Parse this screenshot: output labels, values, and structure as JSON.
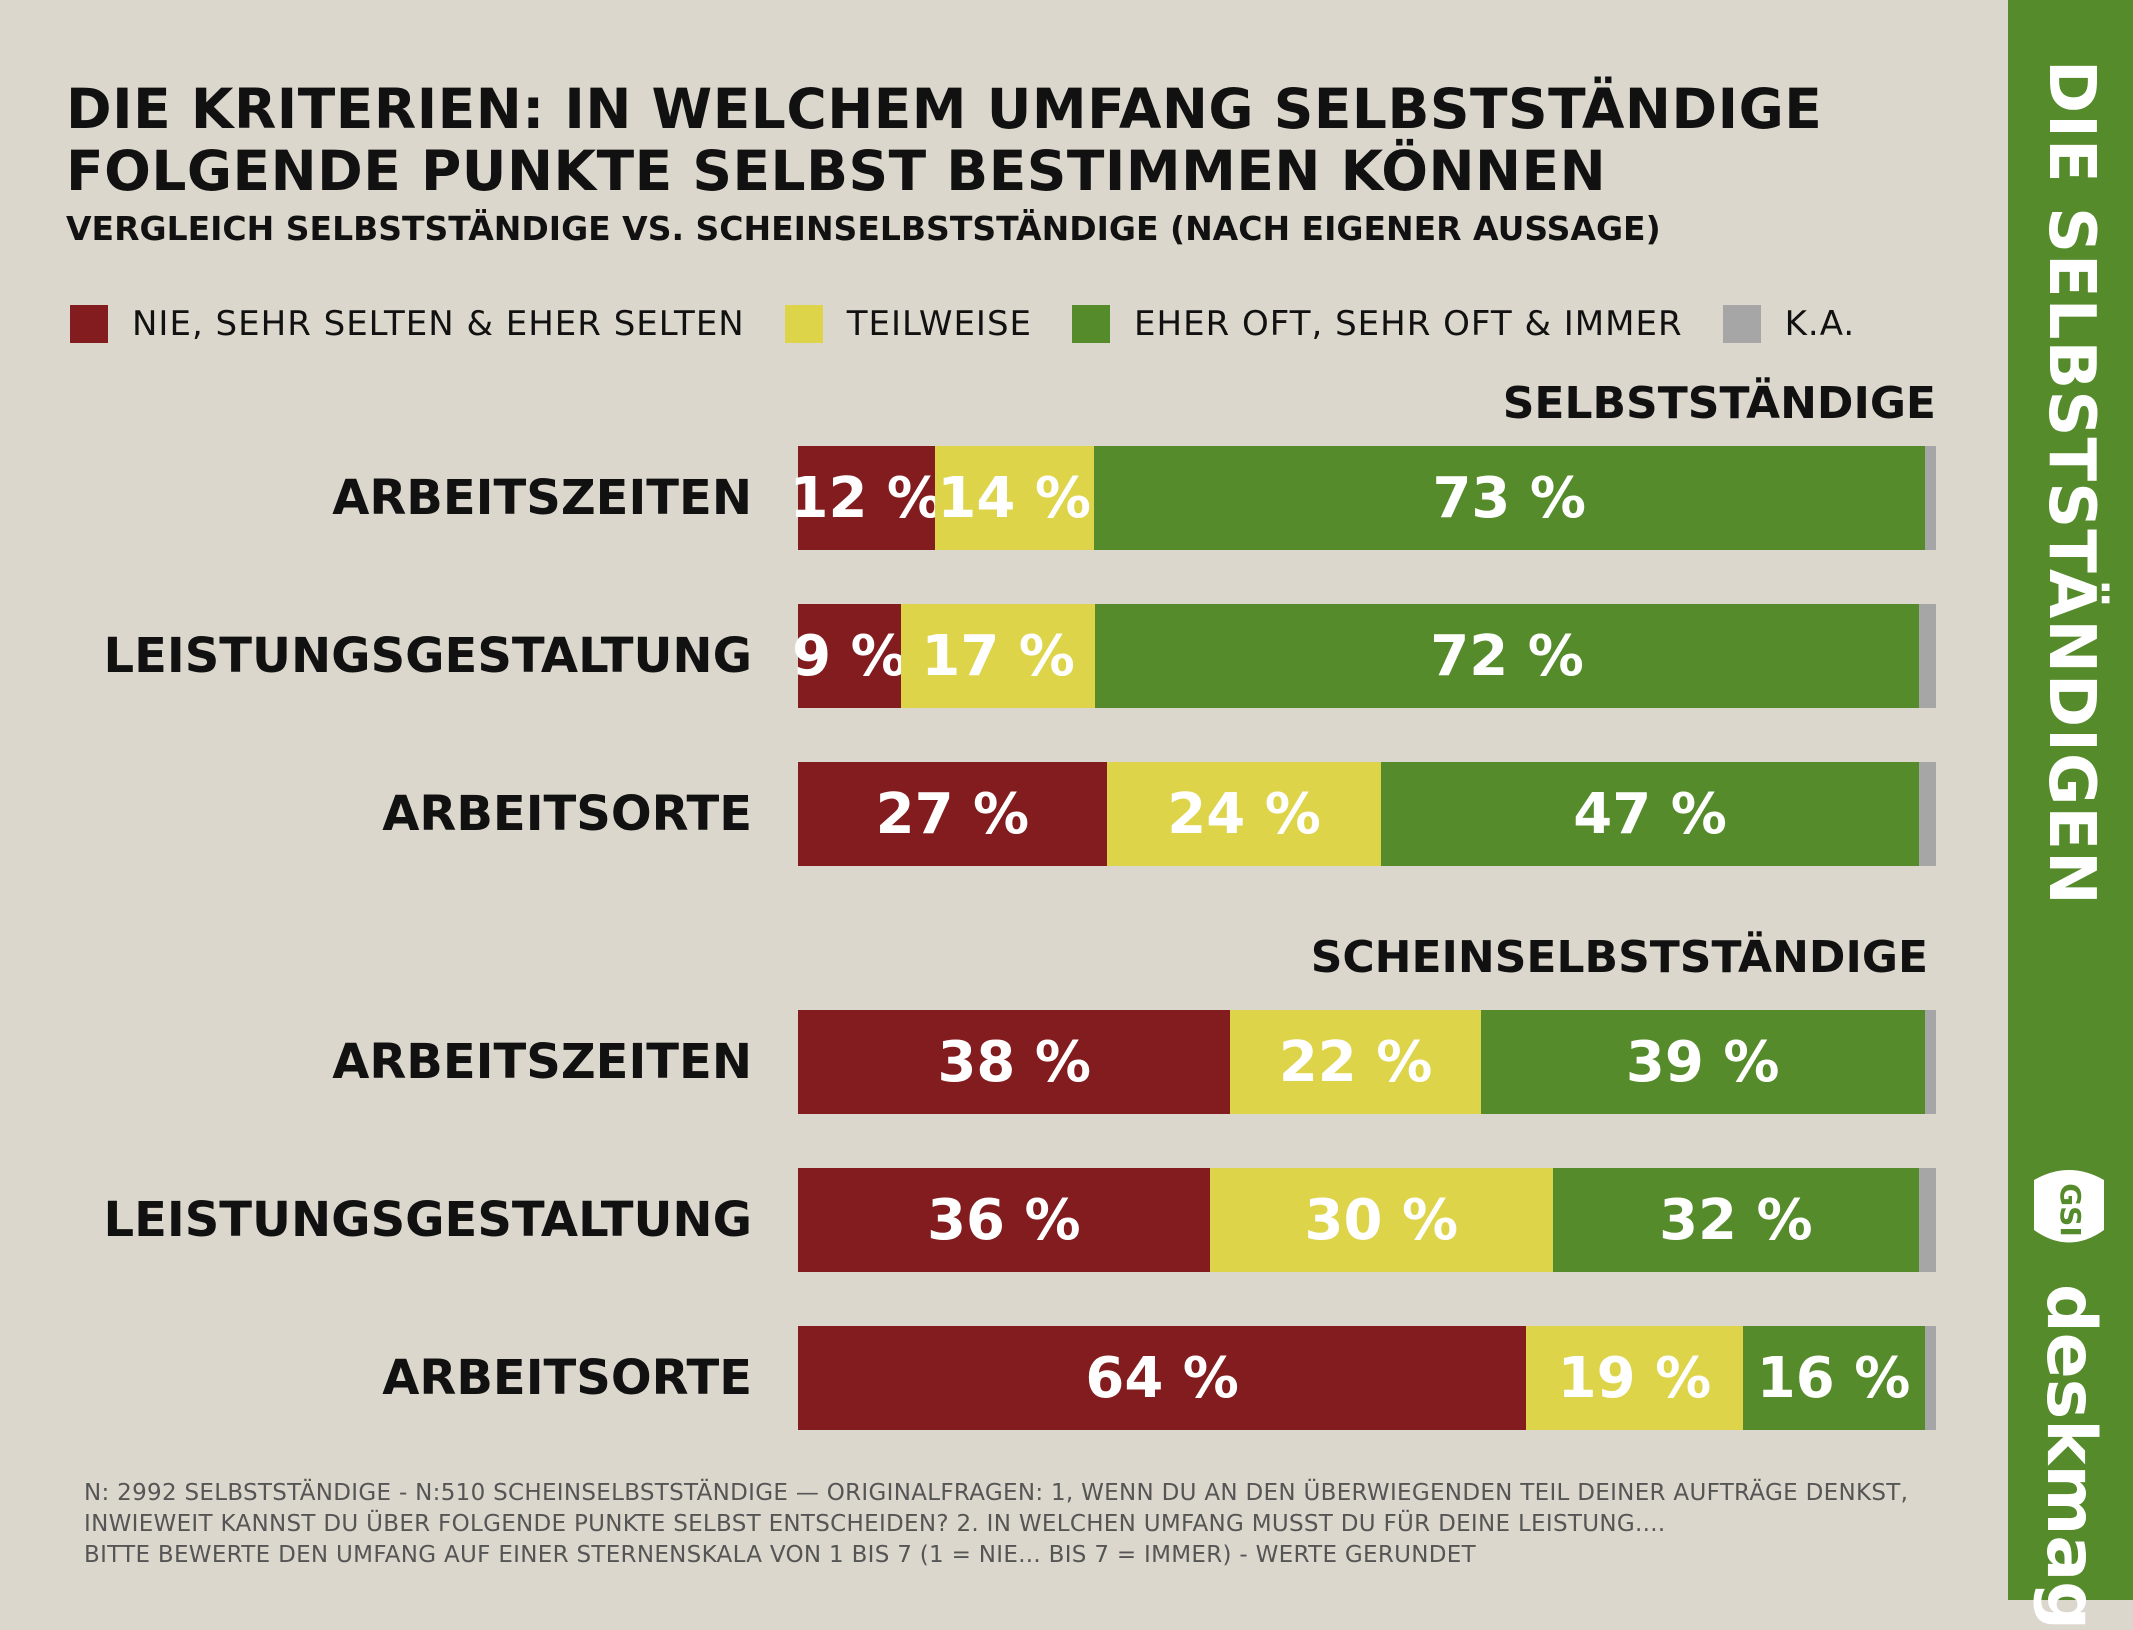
{
  "title_line1": "DIE KRITERIEN: IN WELCHEM UMFANG SELBSTSTÄNDIGE",
  "title_line2": "FOLGENDE PUNKTE SELBST BESTIMMEN KÖNNEN",
  "subtitle": "VERGLEICH SELBSTSTÄNDIGE VS. SCHEINSELBSTSTÄNDIGE (NACH EIGENER AUSSAGE)",
  "sidebar_title": "DIE SELBSTSTÄNDIGEN",
  "brand": "deskmag",
  "logo_text": "GSI",
  "colors": {
    "red": "#831c1f",
    "yellow": "#ddd44a",
    "green": "#568b2b",
    "grey": "#a7a6a6"
  },
  "footnote": [
    "N: 2992 SELBSTSTÄNDIGE - N:510 SCHEINSELBSTSTÄNDIGE — ORIGINALFRAGEN: 1, WENN DU AN DEN ÜBERWIEGENDEN TEIL DEINER AUFTRÄGE DENKST,",
    "INWIEWEIT KANNST DU ÜBER FOLGENDE PUNKTE SELBST ENTSCHEIDEN? 2. IN WELCHEN UMFANG MUSST DU FÜR DEINE LEISTUNG....",
    "BITTE BEWERTE DEN UMFANG AUF EINER STERNENSKALA VON 1 BIS 7 (1 = NIE... BIS 7 = IMMER) - WERTE GERUNDET"
  ],
  "chart_data": {
    "type": "bar",
    "orientation": "horizontal",
    "stacked": true,
    "legend_placement": "top-left",
    "series": [
      {
        "name": "NIE, SEHR SELTEN & EHER SELTEN",
        "color": "#831c1f"
      },
      {
        "name": "TEILWEISE",
        "color": "#ddd44a"
      },
      {
        "name": "EHER OFT, SEHR OFT & IMMER",
        "color": "#568b2b"
      },
      {
        "name": "K.A.",
        "color": "#a7a6a6"
      }
    ],
    "groups": [
      {
        "name": "SELBSTSTÄNDIGE",
        "rows": [
          {
            "category": "ARBEITSZEITEN",
            "values": [
              12,
              14,
              73,
              1
            ],
            "labels": [
              "12 %",
              "14 %",
              "73 %",
              ""
            ]
          },
          {
            "category": "LEISTUNGSGESTALTUNG",
            "values": [
              9,
              17,
              72,
              1.5
            ],
            "labels": [
              "9 %",
              "17 %",
              "72 %",
              ""
            ]
          },
          {
            "category": "ARBEITSORTE",
            "values": [
              27,
              24,
              47,
              1.5
            ],
            "labels": [
              "27 %",
              "24 %",
              "47 %",
              ""
            ]
          }
        ]
      },
      {
        "name": "SCHEINSELBSTSTÄNDIGE",
        "rows": [
          {
            "category": "ARBEITSZEITEN",
            "values": [
              38,
              22,
              39,
              1
            ],
            "labels": [
              "38 %",
              "22 %",
              "39 %",
              ""
            ]
          },
          {
            "category": "LEISTUNGSGESTALTUNG",
            "values": [
              36,
              30,
              32,
              1.5
            ],
            "labels": [
              "36 %",
              "30 %",
              "32 %",
              ""
            ]
          },
          {
            "category": "ARBEITSORTE",
            "values": [
              64,
              19,
              16,
              1
            ],
            "labels": [
              "64 %",
              "19 %",
              "16 %",
              ""
            ]
          }
        ]
      }
    ]
  }
}
